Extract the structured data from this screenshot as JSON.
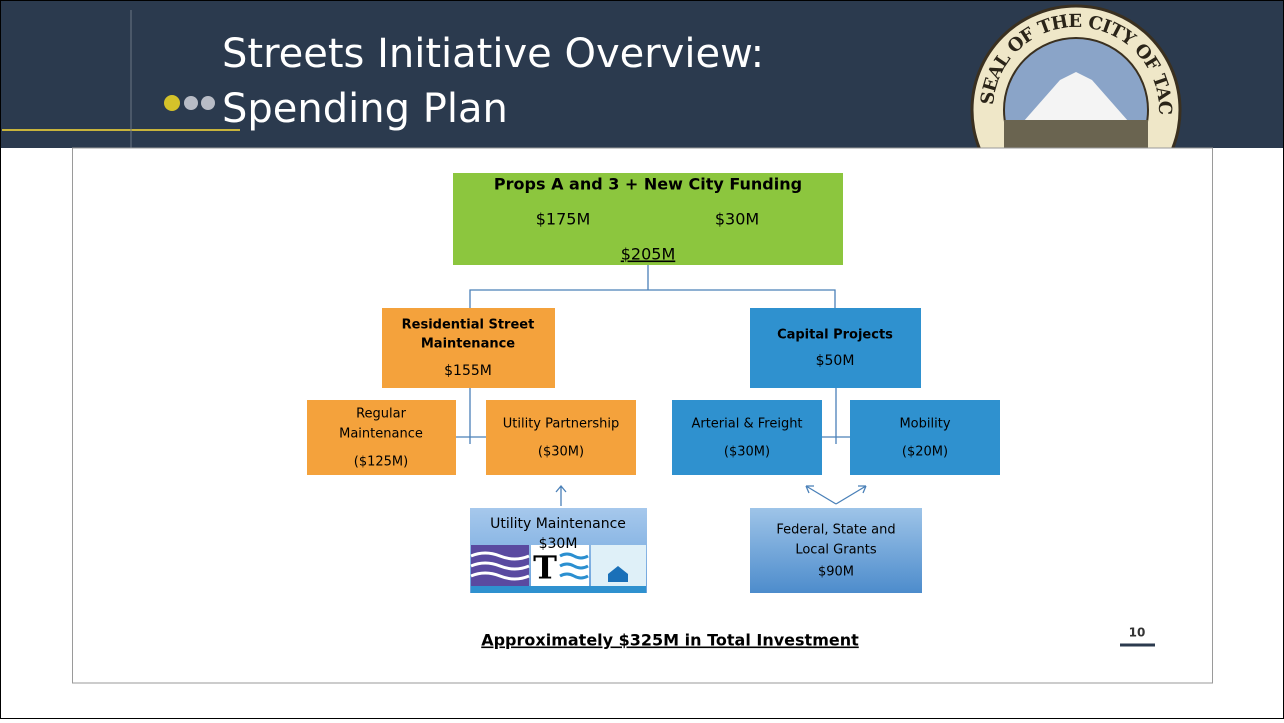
{
  "header": {
    "title": [
      "Streets Initiative Overview:",
      "Spending Plan"
    ],
    "seal": "SEAL OF THE CITY OF TACOMA"
  },
  "nodes": [
    {
      "title": "Props A and 3  + New City Funding",
      "left": "$175M",
      "right": "$30M",
      "total": "$205M"
    },
    {
      "title": [
        "Residential Street",
        "Maintenance"
      ],
      "amount": "$155M"
    },
    {
      "title": "Capital Projects",
      "amount": "$50M"
    },
    {
      "title": [
        "Regular",
        "Maintenance"
      ],
      "amount": "($125M)"
    },
    {
      "title": "Utility Partnership",
      "amount": "($30M)"
    },
    {
      "title": "Arterial & Freight",
      "amount": "($30M)"
    },
    {
      "title": "Mobility",
      "amount": "($20M)"
    },
    {
      "title": "Utility Maintenance",
      "amount": "$30M"
    },
    {
      "title": [
        "Federal, State and",
        "Local Grants"
      ],
      "amount": "$90M"
    }
  ],
  "footer": {
    "total": "Approximately $325M in Total Investment",
    "page": "10"
  }
}
